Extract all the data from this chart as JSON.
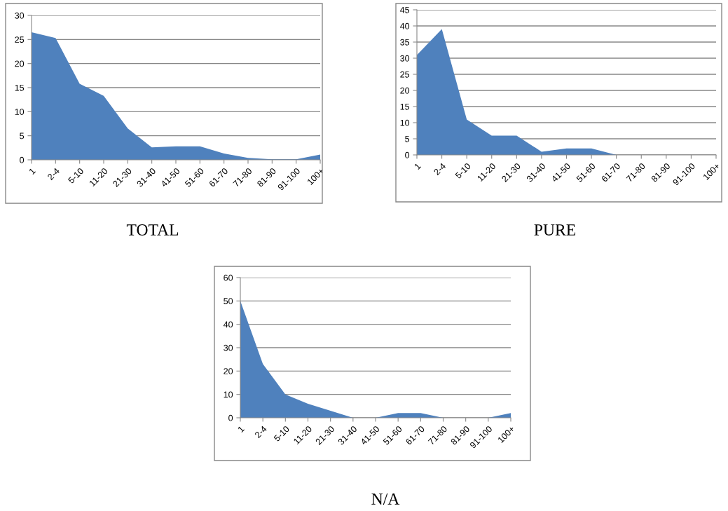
{
  "chart_data": [
    {
      "type": "area",
      "title": "TOTAL",
      "categories": [
        "1",
        "2-4",
        "5-10",
        "11-20",
        "21-30",
        "31-40",
        "41-50",
        "51-60",
        "61-70",
        "71-80",
        "81-90",
        "91-100",
        "100+"
      ],
      "values": [
        26.5,
        25.3,
        15.8,
        13.3,
        6.5,
        2.6,
        2.8,
        2.8,
        1.3,
        0.4,
        0.1,
        0.1,
        1.1
      ],
      "color": "#4f81bd",
      "ylim": [
        0,
        30
      ],
      "yticks": [
        0,
        5,
        10,
        15,
        20,
        25,
        30
      ],
      "grid": "y"
    },
    {
      "type": "area",
      "title": "PURE",
      "categories": [
        "1",
        "2-4",
        "5-10",
        "11-20",
        "21-30",
        "31-40",
        "41-50",
        "51-60",
        "61-70",
        "71-80",
        "81-90",
        "91-100",
        "100+"
      ],
      "values": [
        31,
        39,
        11,
        6,
        6,
        1,
        2,
        2,
        0,
        0,
        0,
        0,
        0
      ],
      "color": "#4f81bd",
      "ylim": [
        0,
        45
      ],
      "yticks": [
        0,
        5,
        10,
        15,
        20,
        25,
        30,
        35,
        40,
        45
      ],
      "grid": "y"
    },
    {
      "type": "area",
      "title": "N/A",
      "categories": [
        "1",
        "2-4",
        "5-10",
        "11-20",
        "21-30",
        "31-40",
        "41-50",
        "51-60",
        "61-70",
        "71-80",
        "81-90",
        "91-100",
        "100+"
      ],
      "values": [
        50,
        23,
        10,
        6,
        3,
        0,
        0,
        2,
        2,
        0,
        0,
        0,
        2
      ],
      "color": "#4f81bd",
      "ylim": [
        0,
        60
      ],
      "yticks": [
        0,
        10,
        20,
        30,
        40,
        50,
        60
      ],
      "grid": "y"
    }
  ]
}
